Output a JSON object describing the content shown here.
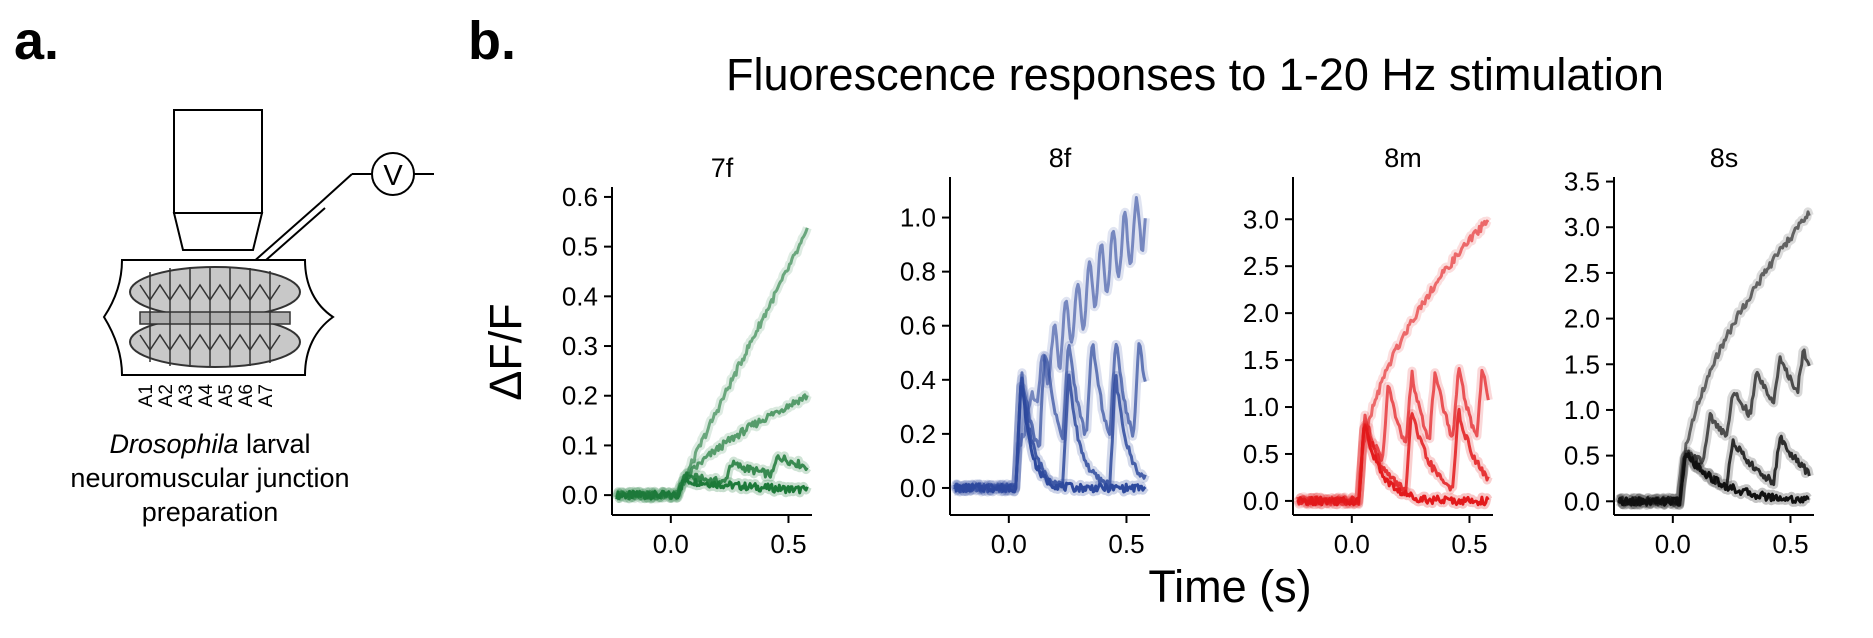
{
  "panel_a": {
    "label": "a.",
    "segments": [
      "A1",
      "A2",
      "A3",
      "A4",
      "A5",
      "A6",
      "A7"
    ],
    "voltmeter": "V",
    "caption_italic": "Drosophila",
    "caption_line1_rest": " larval",
    "caption_line2": "neuromuscular junction",
    "caption_line3": "preparation"
  },
  "panel_b": {
    "label": "b.",
    "title": "Fluorescence responses to 1-20 Hz stimulation",
    "ylabel": "ΔF/F",
    "xlabel": "Time (s)"
  },
  "chart_data": [
    {
      "type": "line",
      "title": "7f",
      "color": "#1e7a3a",
      "xlim": [
        -0.25,
        0.6
      ],
      "ylim": [
        -0.04,
        0.62
      ],
      "yticks": [
        0.0,
        0.1,
        0.2,
        0.3,
        0.4,
        0.5,
        0.6
      ],
      "xticks": [
        0.0,
        0.5
      ],
      "series": [
        {
          "frequency_hz": 1,
          "alpha": 1.0,
          "peak_times": [
            0.05
          ],
          "peak": 0.03,
          "tau": 0.5,
          "base": 0.0
        },
        {
          "frequency_hz": 5,
          "alpha": 0.85,
          "peak_times": [
            0.05,
            0.25,
            0.45
          ],
          "peak": 0.04,
          "tau": 0.4,
          "base": 0.0
        },
        {
          "frequency_hz": 10,
          "alpha": 0.7,
          "ramp_to": 0.2,
          "ramp_curve": 0.65
        },
        {
          "frequency_hz": 20,
          "alpha": 0.6,
          "ramp_to": 0.53,
          "ramp_curve": 0.95
        }
      ]
    },
    {
      "type": "line",
      "title": "8f",
      "color": "#2e4a9e",
      "xlim": [
        -0.25,
        0.6
      ],
      "ylim": [
        -0.1,
        1.15
      ],
      "yticks": [
        0.0,
        0.2,
        0.4,
        0.6,
        0.8,
        1.0
      ],
      "xticks": [
        0.0,
        0.5
      ],
      "series": [
        {
          "frequency_hz": 1,
          "alpha": 1.0,
          "peak_times": [
            0.05
          ],
          "peak": 0.45,
          "tau": 0.04,
          "base": 0.0
        },
        {
          "frequency_hz": 5,
          "alpha": 0.85,
          "peak_times": [
            0.05,
            0.25,
            0.45
          ],
          "peak": 0.45,
          "tau": 0.05,
          "base": 0.0
        },
        {
          "frequency_hz": 10,
          "alpha": 0.7,
          "peak_times": [
            0.05,
            0.15,
            0.25,
            0.35,
            0.45,
            0.55
          ],
          "peak": 0.45,
          "tau": 0.07,
          "base": 0.0
        },
        {
          "frequency_hz": 20,
          "alpha": 0.6,
          "ramp_to": 1.0,
          "ramp_curve": 0.55,
          "wobble": 0.1
        }
      ]
    },
    {
      "type": "line",
      "title": "8m",
      "color": "#e31a1c",
      "xlim": [
        -0.25,
        0.6
      ],
      "ylim": [
        -0.15,
        3.45
      ],
      "yticks": [
        0.0,
        0.5,
        1.0,
        1.5,
        2.0,
        2.5,
        3.0
      ],
      "xticks": [
        0.0,
        0.5
      ],
      "series": [
        {
          "frequency_hz": 1,
          "alpha": 1.0,
          "peak_times": [
            0.05
          ],
          "peak": 0.9,
          "tau": 0.07,
          "base": 0.0
        },
        {
          "frequency_hz": 5,
          "alpha": 0.85,
          "peak_times": [
            0.05,
            0.25,
            0.45
          ],
          "peak": 0.9,
          "tau": 0.09,
          "base": 0.0
        },
        {
          "frequency_hz": 10,
          "alpha": 0.7,
          "peak_times": [
            0.05,
            0.15,
            0.25,
            0.35,
            0.45,
            0.55
          ],
          "peak": 0.95,
          "tau": 0.1,
          "base": 0.0
        },
        {
          "frequency_hz": 20,
          "alpha": 0.6,
          "ramp_to": 3.0,
          "ramp_curve": 0.5
        }
      ]
    },
    {
      "type": "line",
      "title": "8s",
      "color": "#111111",
      "xlim": [
        -0.25,
        0.6
      ],
      "ylim": [
        -0.15,
        3.55
      ],
      "yticks": [
        0.0,
        0.5,
        1.0,
        1.5,
        2.0,
        2.5,
        3.0,
        3.5
      ],
      "xticks": [
        0.0,
        0.5
      ],
      "series": [
        {
          "frequency_hz": 1,
          "alpha": 1.0,
          "peak_times": [
            0.05
          ],
          "peak": 0.55,
          "tau": 0.15,
          "base": 0.0
        },
        {
          "frequency_hz": 5,
          "alpha": 0.85,
          "peak_times": [
            0.05,
            0.25,
            0.45
          ],
          "peak": 0.55,
          "tau": 0.15,
          "base": 0.0
        },
        {
          "frequency_hz": 10,
          "alpha": 0.7,
          "peak_times": [
            0.05,
            0.15,
            0.25,
            0.35,
            0.45,
            0.55
          ],
          "peak": 0.55,
          "tau": 0.3,
          "base": 0.0
        },
        {
          "frequency_hz": 20,
          "alpha": 0.6,
          "ramp_to": 3.15,
          "ramp_curve": 0.55
        }
      ]
    }
  ]
}
